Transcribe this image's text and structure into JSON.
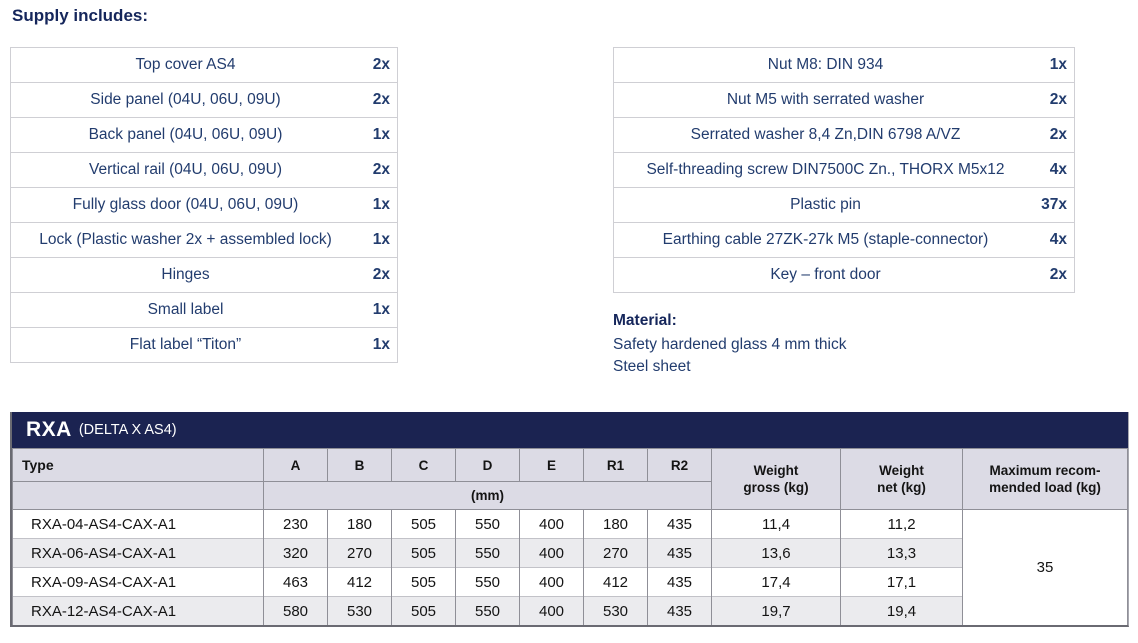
{
  "heading": "Supply includes:",
  "supply_left": {
    "items": [
      {
        "label": "Top cover AS4",
        "qty": "2x"
      },
      {
        "label": "Side panel (04U, 06U, 09U)",
        "qty": "2x"
      },
      {
        "label": "Back panel (04U, 06U, 09U)",
        "qty": "1x"
      },
      {
        "label": "Vertical rail (04U, 06U, 09U)",
        "qty": "2x"
      },
      {
        "label": "Fully glass door (04U, 06U, 09U)",
        "qty": "1x"
      },
      {
        "label": "Lock (Plastic washer 2x + assembled lock)",
        "qty": "1x"
      },
      {
        "label": "Hinges",
        "qty": "2x"
      },
      {
        "label": "Small label",
        "qty": "1x"
      },
      {
        "label": "Flat label “Titon”",
        "qty": "1x"
      }
    ]
  },
  "supply_right": {
    "items": [
      {
        "label": "Nut M8: DIN 934",
        "qty": "1x"
      },
      {
        "label": "Nut M5 with serrated washer",
        "qty": "2x"
      },
      {
        "label": "Serrated washer 8,4 Zn,DIN 6798 A/VZ",
        "qty": "2x"
      },
      {
        "label": "Self-threading screw DIN7500C Zn., THORX M5x12",
        "qty": "4x"
      },
      {
        "label": "Plastic pin",
        "qty": "37x"
      },
      {
        "label": "Earthing cable 27ZK-27k M5 (staple-connector)",
        "qty": "4x"
      },
      {
        "label": "Key – front door",
        "qty": "2x"
      }
    ]
  },
  "material": {
    "title": "Material:",
    "lines": [
      "Safety hardened glass 4 mm thick",
      "Steel sheet"
    ]
  },
  "spec_table": {
    "title": "RXA",
    "subtitle": "(DELTA X AS4)",
    "type_header": "Type",
    "dim_columns": [
      "A",
      "B",
      "C",
      "D",
      "E",
      "R1",
      "R2"
    ],
    "unit_label": "(mm)",
    "weight_gross_header": "Weight\ngross (kg)",
    "weight_net_header": "Weight\nnet (kg)",
    "max_load_header": "Maximum recom-\nmended load (kg)",
    "rows": [
      {
        "type": "RXA-04-AS4-CAX-A1",
        "dims": [
          "230",
          "180",
          "505",
          "550",
          "400",
          "180",
          "435"
        ],
        "weight_gross": "11,4",
        "weight_net": "11,2"
      },
      {
        "type": "RXA-06-AS4-CAX-A1",
        "dims": [
          "320",
          "270",
          "505",
          "550",
          "400",
          "270",
          "435"
        ],
        "weight_gross": "13,6",
        "weight_net": "13,3"
      },
      {
        "type": "RXA-09-AS4-CAX-A1",
        "dims": [
          "463",
          "412",
          "505",
          "550",
          "400",
          "412",
          "435"
        ],
        "weight_gross": "17,4",
        "weight_net": "17,1"
      },
      {
        "type": "RXA-12-AS4-CAX-A1",
        "dims": [
          "580",
          "530",
          "505",
          "550",
          "400",
          "530",
          "435"
        ],
        "weight_gross": "19,7",
        "weight_net": "19,4"
      }
    ],
    "max_load_value": "35",
    "colors": {
      "titlebar_bg": "#1b2351",
      "header_bg": "#dcdbe5",
      "stripe_bg": "#ebebee",
      "text_navy": "#223c6e",
      "heading_navy": "#15265b"
    }
  }
}
